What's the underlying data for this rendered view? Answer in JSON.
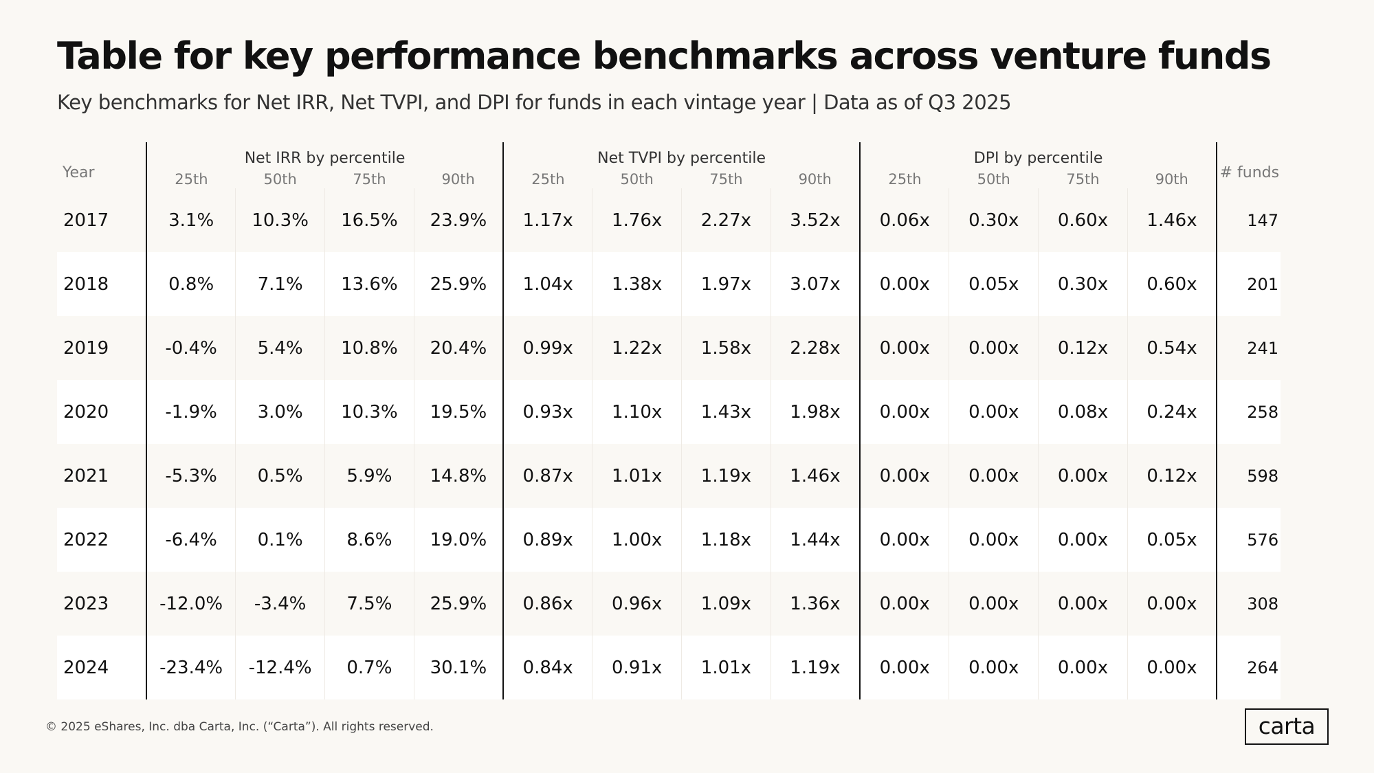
{
  "header": {
    "title": "Table for key performance benchmarks across venture funds",
    "subtitle": "Key benchmarks for Net IRR, Net TVPI, and DPI for funds in each vintage year | Data as of Q3 2025"
  },
  "table": {
    "year_header": "Year",
    "funds_header": "# funds",
    "group_headers": [
      "Net IRR by percentile",
      "Net TVPI by percentile",
      "DPI by percentile"
    ],
    "subheaders": [
      "25th",
      "50th",
      "75th",
      "90th",
      "25th",
      "50th",
      "75th",
      "90th",
      "25th",
      "50th",
      "75th",
      "90th"
    ],
    "rows": [
      [
        "2017",
        "3.1%",
        "10.3%",
        "16.5%",
        "23.9%",
        "1.17x",
        "1.76x",
        "2.27x",
        "3.52x",
        "0.06x",
        "0.30x",
        "0.60x",
        "1.46x",
        "147"
      ],
      [
        "2018",
        "0.8%",
        "7.1%",
        "13.6%",
        "25.9%",
        "1.04x",
        "1.38x",
        "1.97x",
        "3.07x",
        "0.00x",
        "0.05x",
        "0.30x",
        "0.60x",
        "201"
      ],
      [
        "2019",
        "-0.4%",
        "5.4%",
        "10.8%",
        "20.4%",
        "0.99x",
        "1.22x",
        "1.58x",
        "2.28x",
        "0.00x",
        "0.00x",
        "0.12x",
        "0.54x",
        "241"
      ],
      [
        "2020",
        "-1.9%",
        "3.0%",
        "10.3%",
        "19.5%",
        "0.93x",
        "1.10x",
        "1.43x",
        "1.98x",
        "0.00x",
        "0.00x",
        "0.08x",
        "0.24x",
        "258"
      ],
      [
        "2021",
        "-5.3%",
        "0.5%",
        "5.9%",
        "14.8%",
        "0.87x",
        "1.01x",
        "1.19x",
        "1.46x",
        "0.00x",
        "0.00x",
        "0.00x",
        "0.12x",
        "598"
      ],
      [
        "2022",
        "-6.4%",
        "0.1%",
        "8.6%",
        "19.0%",
        "0.89x",
        "1.00x",
        "1.18x",
        "1.44x",
        "0.00x",
        "0.00x",
        "0.00x",
        "0.05x",
        "576"
      ],
      [
        "2023",
        "-12.0%",
        "-3.4%",
        "7.5%",
        "25.9%",
        "0.86x",
        "0.96x",
        "1.09x",
        "1.36x",
        "0.00x",
        "0.00x",
        "0.00x",
        "0.00x",
        "308"
      ],
      [
        "2024",
        "-23.4%",
        "-12.4%",
        "0.7%",
        "30.1%",
        "0.84x",
        "0.91x",
        "1.01x",
        "1.19x",
        "0.00x",
        "0.00x",
        "0.00x",
        "0.00x",
        "264"
      ]
    ]
  },
  "footer": {
    "copyright": "© 2025 eShares, Inc. dba Carta, Inc. (“Carta”). All rights reserved.",
    "logo": "carta"
  }
}
